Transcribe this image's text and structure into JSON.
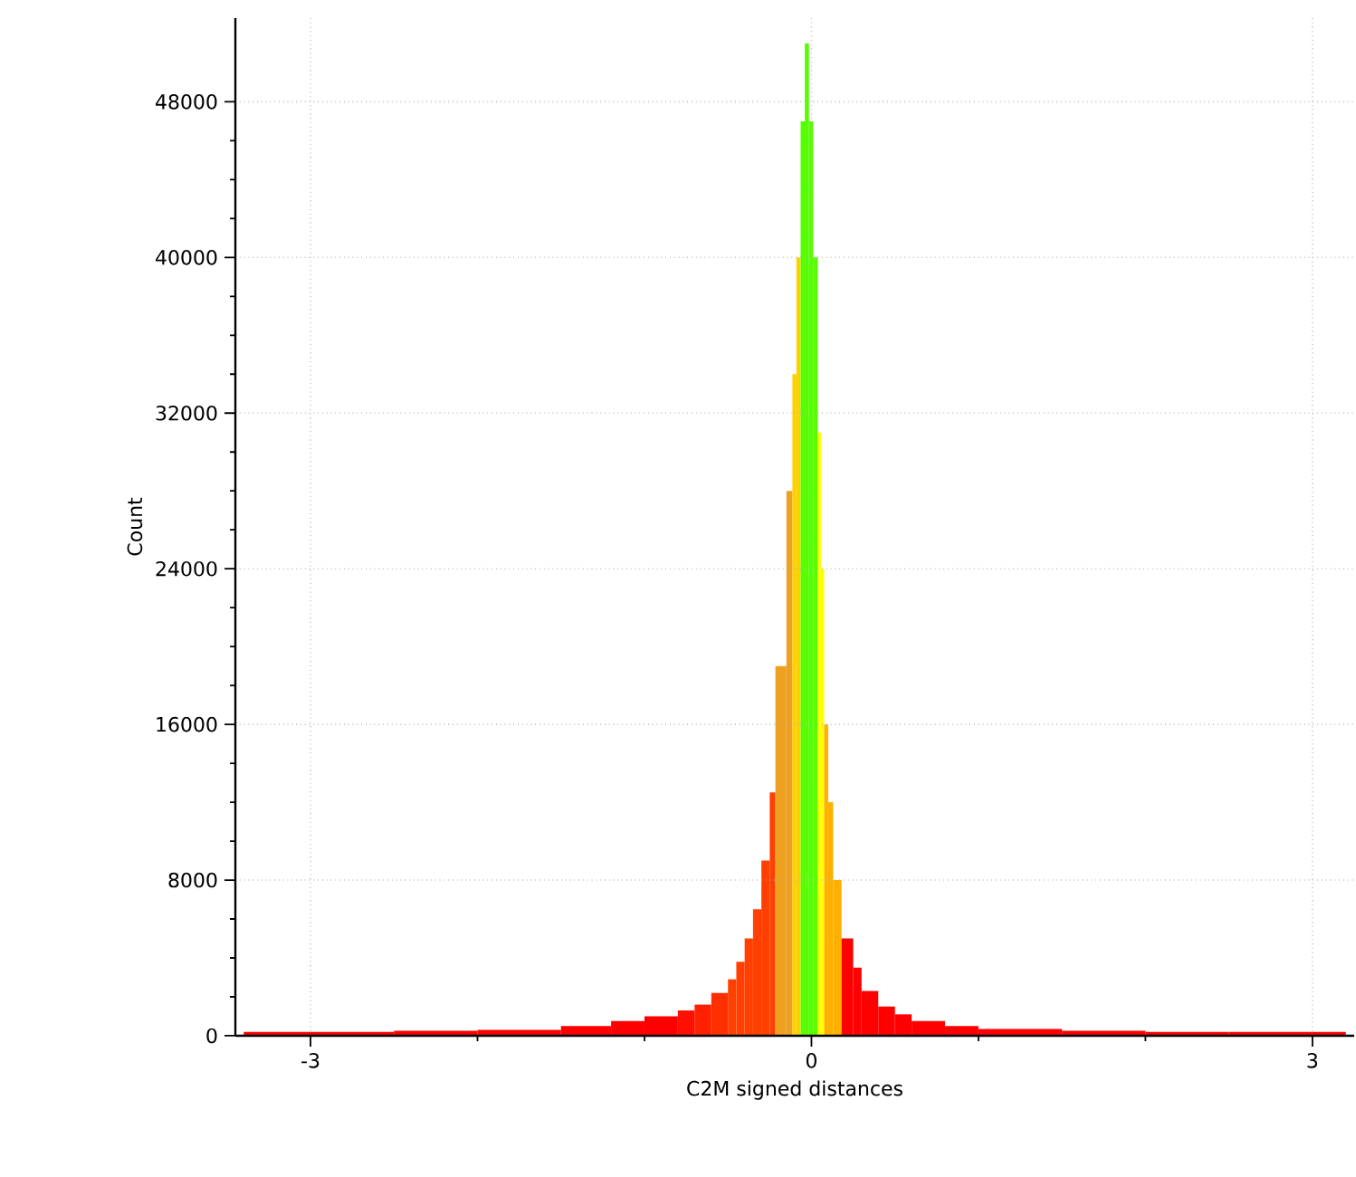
{
  "chart_data": {
    "type": "histogram",
    "xlabel": "C2M signed distances",
    "ylabel": "Count",
    "bins": [
      -3.4,
      -3.0,
      -2.5,
      -2.0,
      -1.5,
      -1.2,
      -1.0,
      -0.8,
      -0.7,
      -0.6,
      -0.5,
      -0.45,
      -0.4,
      -0.35,
      -0.3,
      -0.25,
      -0.216,
      -0.15,
      -0.114,
      -0.09,
      -0.065,
      -0.04,
      -0.015,
      0.01,
      0.038,
      0.057,
      0.076,
      0.1,
      0.13,
      0.18,
      0.25,
      0.3,
      0.4,
      0.5,
      0.6,
      0.8,
      1.0,
      1.5,
      2.0,
      2.5,
      3.0,
      3.2
    ],
    "values": [
      200,
      200,
      250,
      300,
      500,
      750,
      1000,
      1300,
      1600,
      2200,
      2900,
      3800,
      5000,
      6500,
      9000,
      12500,
      19000,
      28000,
      34000,
      40000,
      47000,
      51000,
      47000,
      40000,
      31000,
      24000,
      16000,
      12000,
      8000,
      5000,
      3500,
      2300,
      1500,
      1100,
      750,
      500,
      350,
      250,
      200,
      200,
      200
    ],
    "colors": [
      "#ff0000",
      "#ff0000",
      "#ff0000",
      "#ff0000",
      "#ff0000",
      "#ff0000",
      "#ff0000",
      "#ff1000",
      "#ff2000",
      "#ff3000",
      "#ff4000",
      "#ff4000",
      "#ff4000",
      "#ff4000",
      "#ff4000",
      "#ff4000",
      "#eea020",
      "#eea020",
      "#ffd000",
      "#ffd000",
      "#55ff00",
      "#55ff00",
      "#55ff00",
      "#55ff00",
      "#ffff00",
      "#ffff00",
      "#ffb000",
      "#ffb000",
      "#ffb000",
      "#ff0000",
      "#ff0000",
      "#ff0000",
      "#ff0000",
      "#ff0000",
      "#ff0000",
      "#ff0000",
      "#ff0000",
      "#ff0000",
      "#ff0000",
      "#ff0000",
      "#ff0000"
    ],
    "xlim": [
      -3.45,
      3.25
    ],
    "ylim": [
      0,
      52300
    ],
    "xticks": [
      -3,
      0,
      3
    ],
    "yticks": [
      0,
      8000,
      16000,
      24000,
      32000,
      40000,
      48000
    ],
    "grid": true
  }
}
